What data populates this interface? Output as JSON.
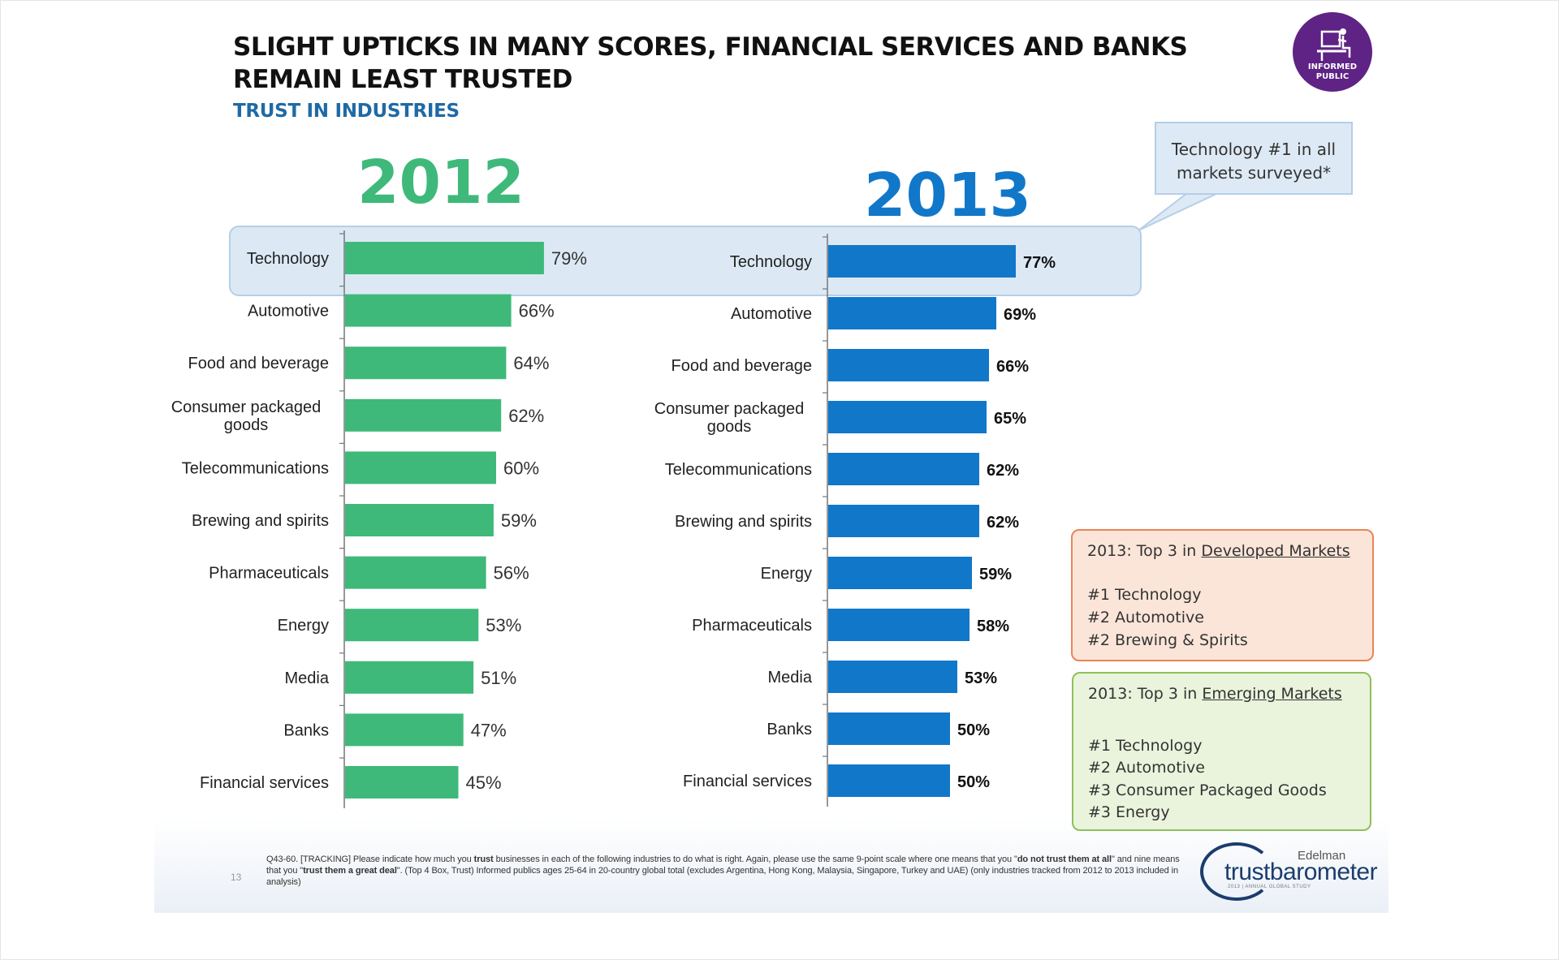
{
  "header": {
    "title": "SLIGHT UPTICKS IN MANY SCORES, FINANCIAL SERVICES AND BANKS REMAIN LEAST TRUSTED",
    "subtitle": "TRUST IN INDUSTRIES"
  },
  "logo": {
    "line1": "INFORMED",
    "line2": "PUBLIC"
  },
  "colors": {
    "bar_2012": "#3eb97a",
    "bar_2013": "#1177c9",
    "subtitle": "#1f6aa5",
    "logo": "#5e2384"
  },
  "callout": {
    "line1": "Technology #1 in all",
    "line2": "markets surveyed*"
  },
  "chart_data": [
    {
      "type": "bar",
      "orientation": "horizontal",
      "title": "2012",
      "categories": [
        "Technology",
        "Automotive",
        "Food and beverage",
        "Consumer packaged goods",
        "Telecommunications",
        "Brewing and spirits",
        "Pharmaceuticals",
        "Energy",
        "Media",
        "Banks",
        "Financial services"
      ],
      "category_lines": [
        [
          "Technology"
        ],
        [
          "Automotive"
        ],
        [
          "Food and beverage"
        ],
        [
          "Consumer packaged",
          "goods"
        ],
        [
          "Telecommunications"
        ],
        [
          "Brewing and spirits"
        ],
        [
          "Pharmaceuticals"
        ],
        [
          "Energy"
        ],
        [
          "Media"
        ],
        [
          "Banks"
        ],
        [
          "Financial services"
        ]
      ],
      "values": [
        79,
        66,
        64,
        62,
        60,
        59,
        56,
        53,
        51,
        47,
        45
      ],
      "value_labels": [
        "79%",
        "66%",
        "64%",
        "62%",
        "60%",
        "59%",
        "56%",
        "53%",
        "51%",
        "47%",
        "45%"
      ],
      "xlim": [
        0,
        100
      ],
      "color": "#3eb97a"
    },
    {
      "type": "bar",
      "orientation": "horizontal",
      "title": "2013",
      "categories": [
        "Technology",
        "Automotive",
        "Food and beverage",
        "Consumer packaged goods",
        "Telecommunications",
        "Brewing and spirits",
        "Energy",
        "Pharmaceuticals",
        "Media",
        "Banks",
        "Financial services"
      ],
      "category_lines": [
        [
          "Technology"
        ],
        [
          "Automotive"
        ],
        [
          "Food and beverage"
        ],
        [
          "Consumer packaged",
          "goods"
        ],
        [
          "Telecommunications"
        ],
        [
          "Brewing and spirits"
        ],
        [
          "Energy"
        ],
        [
          "Pharmaceuticals"
        ],
        [
          "Media"
        ],
        [
          "Banks"
        ],
        [
          "Financial services"
        ]
      ],
      "values": [
        77,
        69,
        66,
        65,
        62,
        62,
        59,
        58,
        53,
        50,
        50
      ],
      "value_labels": [
        "77%",
        "69%",
        "66%",
        "65%",
        "62%",
        "62%",
        "59%",
        "58%",
        "53%",
        "50%",
        "50%"
      ],
      "xlim": [
        0,
        100
      ],
      "color": "#1177c9"
    }
  ],
  "developed": {
    "heading_prefix": "2013: Top 3 in ",
    "heading_link": "Developed Markets",
    "items": [
      "#1  Technology",
      "#2  Automotive",
      "#2  Brewing & Spirits"
    ]
  },
  "emerging": {
    "heading_prefix": "2013: Top 3 in ",
    "heading_link": "Emerging Markets",
    "items": [
      "#1 Technology",
      "#2 Automotive",
      "#3 Consumer Packaged Goods",
      "#3 Energy"
    ]
  },
  "footnote": {
    "p1": "Q43-60. [TRACKING] Please indicate how much you ",
    "b1": "trust",
    "p2": " businesses in each of the following industries to do what is right.  Again, please use the same 9-point scale where one means that you \"",
    "b2": "do not trust them at all",
    "p3": "\" and nine means that you \"",
    "b3": "trust them a great deal",
    "p4": "\". (Top 4 Box, Trust) Informed publics ages 25-64 in 20-country global total (excludes Argentina, Hong Kong, Malaysia, Singapore, Turkey and UAE) (only industries tracked from 2012 to 2013 included in analysis)"
  },
  "page_number": "13",
  "brand": {
    "edelman": "Edelman",
    "main": "trustbarometer",
    "small": "2013 | ANNUAL GLOBAL STUDY"
  }
}
